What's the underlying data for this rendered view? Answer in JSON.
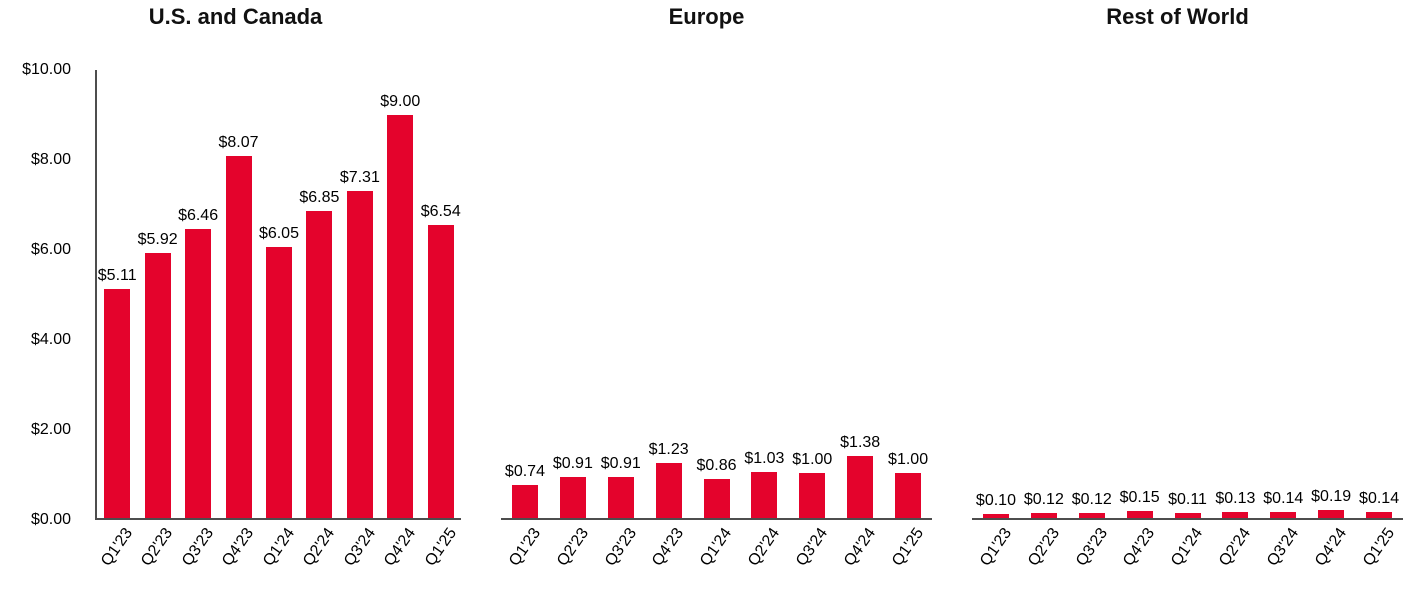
{
  "styles": {
    "bar_color": "#e4032c",
    "axis_color": "#4d4d4d",
    "title_color": "#111111"
  },
  "chart_data": [
    {
      "type": "bar",
      "title": "U.S. and Canada",
      "categories": [
        "Q1'23",
        "Q2'23",
        "Q3'23",
        "Q4'23",
        "Q1'24",
        "Q2'24",
        "Q3'24",
        "Q4'24",
        "Q1'25"
      ],
      "values": [
        5.11,
        5.92,
        6.46,
        8.07,
        6.05,
        6.85,
        7.31,
        9.0,
        6.54
      ],
      "data_labels": [
        "$5.11",
        "$5.92",
        "$6.46",
        "$8.07",
        "$6.05",
        "$6.85",
        "$7.31",
        "$9.00",
        "$6.54"
      ],
      "ylim": [
        0,
        10
      ],
      "show_y_axis": true,
      "grid": false,
      "legend": false,
      "y_ticks": [
        {
          "value": 10,
          "label": "$10.00"
        },
        {
          "value": 8,
          "label": "$8.00"
        },
        {
          "value": 6,
          "label": "$6.00"
        },
        {
          "value": 4,
          "label": "$4.00"
        },
        {
          "value": 2,
          "label": "$2.00"
        },
        {
          "value": 0,
          "label": "$0.00"
        }
      ]
    },
    {
      "type": "bar",
      "title": "Europe",
      "categories": [
        "Q1'23",
        "Q2'23",
        "Q3'23",
        "Q4'23",
        "Q1'24",
        "Q2'24",
        "Q3'24",
        "Q4'24",
        "Q1'25"
      ],
      "values": [
        0.74,
        0.91,
        0.91,
        1.23,
        0.86,
        1.03,
        1.0,
        1.38,
        1.0
      ],
      "data_labels": [
        "$0.74",
        "$0.91",
        "$0.91",
        "$1.23",
        "$0.86",
        "$1.03",
        "$1.00",
        "$1.38",
        "$1.00"
      ],
      "ylim": [
        0,
        10
      ],
      "show_y_axis": false,
      "grid": false,
      "legend": false,
      "y_ticks": []
    },
    {
      "type": "bar",
      "title": "Rest of World",
      "categories": [
        "Q1'23",
        "Q2'23",
        "Q3'23",
        "Q4'23",
        "Q1'24",
        "Q2'24",
        "Q3'24",
        "Q4'24",
        "Q1'25"
      ],
      "values": [
        0.1,
        0.12,
        0.12,
        0.15,
        0.11,
        0.13,
        0.14,
        0.19,
        0.14
      ],
      "data_labels": [
        "$0.10",
        "$0.12",
        "$0.12",
        "$0.15",
        "$0.11",
        "$0.13",
        "$0.14",
        "$0.19",
        "$0.14"
      ],
      "ylim": [
        0,
        10
      ],
      "show_y_axis": false,
      "grid": false,
      "legend": false,
      "y_ticks": []
    }
  ]
}
